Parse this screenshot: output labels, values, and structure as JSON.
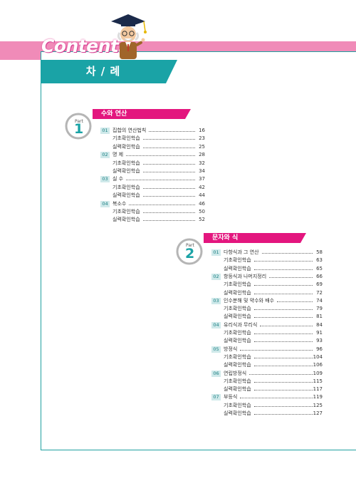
{
  "header": {
    "brand": "Contents",
    "title": "차 / 례"
  },
  "parts": [
    {
      "part_word": "Part",
      "number": "1",
      "title": "수와 연산",
      "rows": [
        {
          "num": "01",
          "title": "집합의 연산법칙",
          "page": "16"
        },
        {
          "num": "",
          "title": "기초확인학습",
          "page": "23"
        },
        {
          "num": "",
          "title": "실력확인학습",
          "page": "25"
        },
        {
          "num": "02",
          "title": "명 제",
          "page": "28"
        },
        {
          "num": "",
          "title": "기초확인학습",
          "page": "32"
        },
        {
          "num": "",
          "title": "실력확인학습",
          "page": "34"
        },
        {
          "num": "03",
          "title": "실 수",
          "page": "37"
        },
        {
          "num": "",
          "title": "기초확인학습",
          "page": "42"
        },
        {
          "num": "",
          "title": "실력확인학습",
          "page": "44"
        },
        {
          "num": "04",
          "title": "복소수",
          "page": "46"
        },
        {
          "num": "",
          "title": "기초확인학습",
          "page": "50"
        },
        {
          "num": "",
          "title": "실력확인학습",
          "page": "52"
        }
      ]
    },
    {
      "part_word": "Part",
      "number": "2",
      "title": "문자와 식",
      "rows": [
        {
          "num": "01",
          "title": "다항식과 그 연산",
          "page": "58"
        },
        {
          "num": "",
          "title": "기초확인학습",
          "page": "63"
        },
        {
          "num": "",
          "title": "실력확인학습",
          "page": "65"
        },
        {
          "num": "02",
          "title": "항등식과 나머지정리",
          "page": "66"
        },
        {
          "num": "",
          "title": "기초확인학습",
          "page": "69"
        },
        {
          "num": "",
          "title": "실력확인학습",
          "page": "72"
        },
        {
          "num": "03",
          "title": "인수분해 및 약수와 배수",
          "page": "74"
        },
        {
          "num": "",
          "title": "기초확인학습",
          "page": "79"
        },
        {
          "num": "",
          "title": "실력확인학습",
          "page": "81"
        },
        {
          "num": "04",
          "title": "유리식과 무리식",
          "page": "84"
        },
        {
          "num": "",
          "title": "기초확인학습",
          "page": "91"
        },
        {
          "num": "",
          "title": "실력확인학습",
          "page": "93"
        },
        {
          "num": "05",
          "title": "방정식",
          "page": "96"
        },
        {
          "num": "",
          "title": "기초확인학습",
          "page": "104"
        },
        {
          "num": "",
          "title": "실력확인학습",
          "page": "106"
        },
        {
          "num": "06",
          "title": "연립방정식",
          "page": "109"
        },
        {
          "num": "",
          "title": "기초확인학습",
          "page": "115"
        },
        {
          "num": "",
          "title": "실력확인학습",
          "page": "117"
        },
        {
          "num": "07",
          "title": "부등식",
          "page": "119"
        },
        {
          "num": "",
          "title": "기초확인학습",
          "page": "125"
        },
        {
          "num": "",
          "title": "실력확인학습",
          "page": "127"
        }
      ]
    }
  ]
}
